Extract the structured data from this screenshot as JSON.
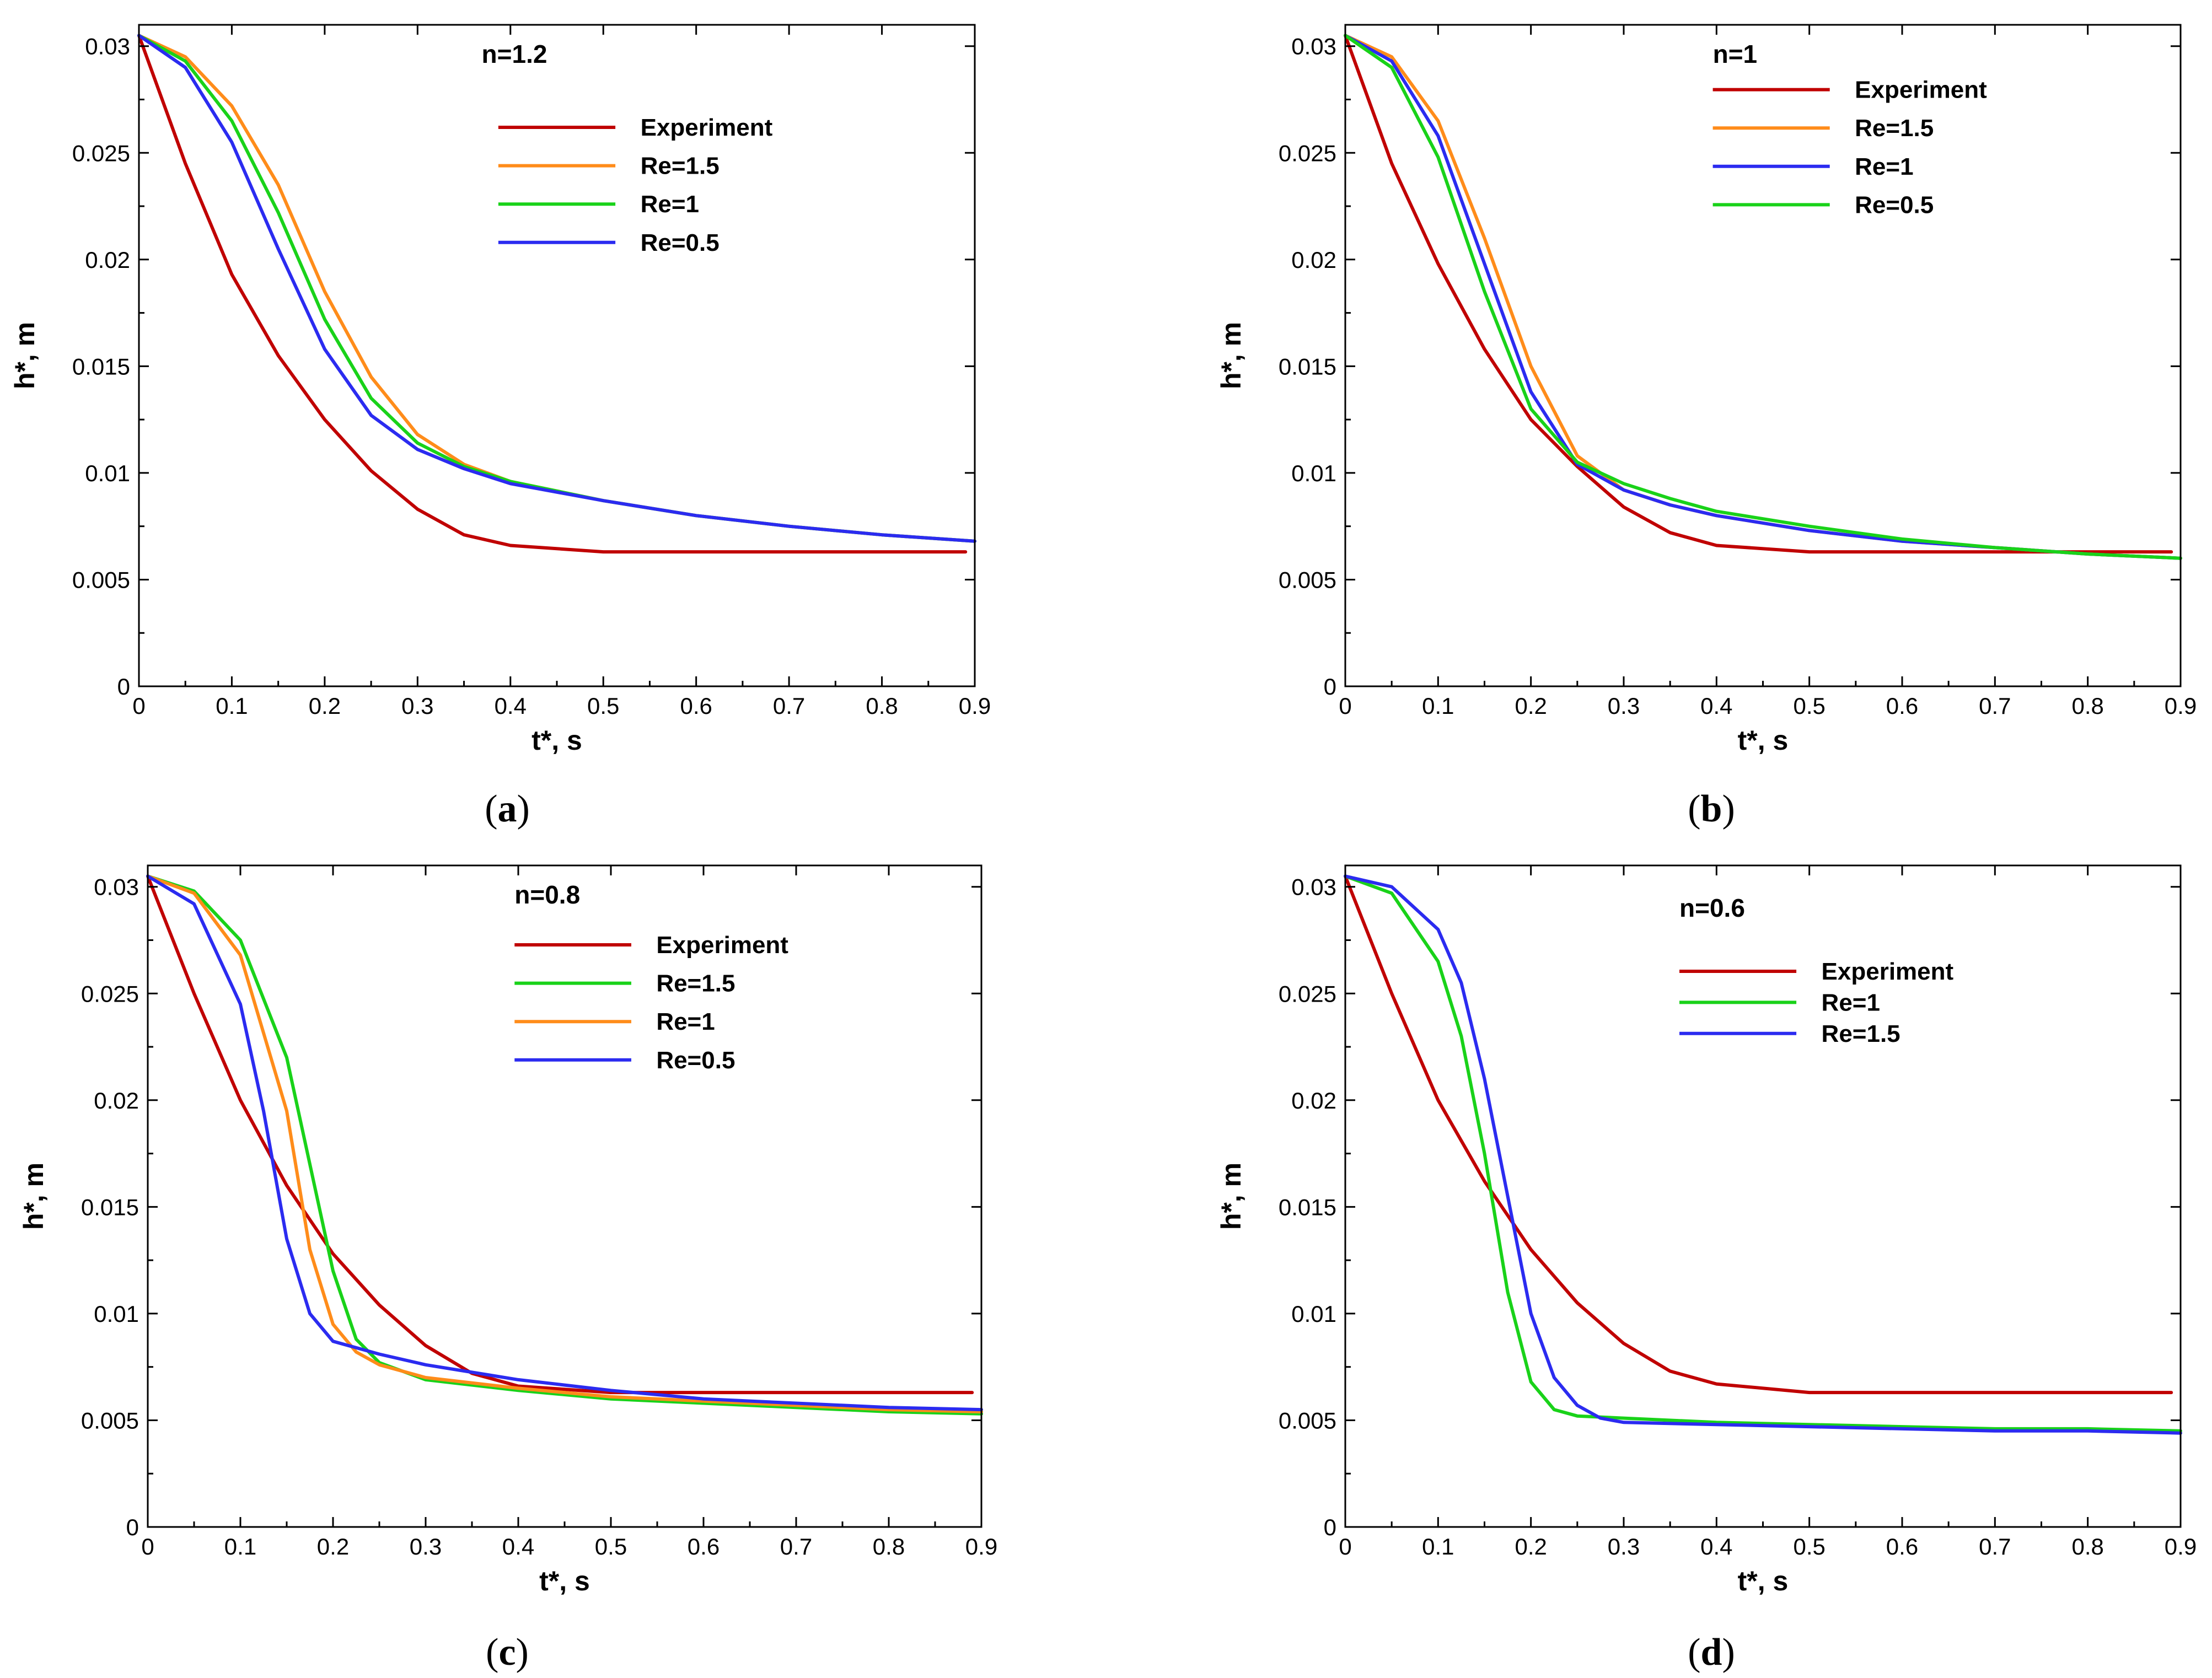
{
  "colors": {
    "experiment": "#c00000",
    "orange": "#ff8c1a",
    "green": "#19d219",
    "blue": "#2b2bf0"
  },
  "chart_data": [
    {
      "type": "line",
      "panel_label": "a",
      "annotation": "n=1.2",
      "xlabel": "t*, s",
      "ylabel": "h*, m",
      "xlim": [
        0,
        0.9
      ],
      "ylim": [
        0,
        0.031
      ],
      "x_ticks": [
        "0",
        "0.1",
        "0.2",
        "0.3",
        "0.4",
        "0.5",
        "0.6",
        "0.7",
        "0.8",
        "0.9"
      ],
      "y_ticks": [
        "0",
        "0.005",
        "0.01",
        "0.015",
        "0.02",
        "0.025",
        "0.03"
      ],
      "series": [
        {
          "name": "Experiment",
          "color": "#c00000",
          "x": [
            0,
            0.05,
            0.1,
            0.15,
            0.2,
            0.25,
            0.3,
            0.35,
            0.4,
            0.5,
            0.6,
            0.7,
            0.8,
            0.89
          ],
          "y": [
            0.0305,
            0.0245,
            0.0193,
            0.0155,
            0.0125,
            0.0101,
            0.0083,
            0.0071,
            0.0066,
            0.0063,
            0.0063,
            0.0063,
            0.0063,
            0.0063
          ]
        },
        {
          "name": "Re=1.5",
          "color": "#ff8c1a",
          "x": [
            0,
            0.05,
            0.1,
            0.15,
            0.2,
            0.25,
            0.3,
            0.35,
            0.4,
            0.5,
            0.6,
            0.7,
            0.8,
            0.9
          ],
          "y": [
            0.0305,
            0.0295,
            0.0272,
            0.0235,
            0.0185,
            0.0145,
            0.0118,
            0.0104,
            0.0096,
            0.0087,
            0.008,
            0.0075,
            0.0071,
            0.0068
          ]
        },
        {
          "name": "Re=1",
          "color": "#19d219",
          "x": [
            0,
            0.05,
            0.1,
            0.15,
            0.2,
            0.25,
            0.3,
            0.35,
            0.4,
            0.5,
            0.6,
            0.7,
            0.8,
            0.9
          ],
          "y": [
            0.0305,
            0.0293,
            0.0265,
            0.0222,
            0.0172,
            0.0135,
            0.0114,
            0.0103,
            0.0096,
            0.0087,
            0.008,
            0.0075,
            0.0071,
            0.0068
          ]
        },
        {
          "name": "Re=0.5",
          "color": "#2b2bf0",
          "x": [
            0,
            0.05,
            0.1,
            0.15,
            0.2,
            0.25,
            0.3,
            0.35,
            0.4,
            0.5,
            0.6,
            0.7,
            0.8,
            0.9
          ],
          "y": [
            0.0305,
            0.029,
            0.0255,
            0.0205,
            0.0158,
            0.0127,
            0.0111,
            0.0102,
            0.0095,
            0.0087,
            0.008,
            0.0075,
            0.0071,
            0.0068
          ]
        }
      ]
    },
    {
      "type": "line",
      "panel_label": "b",
      "annotation": "n=1",
      "xlabel": "t*, s",
      "ylabel": "h*, m",
      "xlim": [
        0,
        0.9
      ],
      "ylim": [
        0,
        0.031
      ],
      "x_ticks": [
        "0",
        "0.1",
        "0.2",
        "0.3",
        "0.4",
        "0.5",
        "0.6",
        "0.7",
        "0.8",
        "0.9"
      ],
      "y_ticks": [
        "0",
        "0.005",
        "0.01",
        "0.015",
        "0.02",
        "0.025",
        "0.03"
      ],
      "series": [
        {
          "name": "Experiment",
          "color": "#c00000",
          "x": [
            0,
            0.05,
            0.1,
            0.15,
            0.2,
            0.25,
            0.3,
            0.35,
            0.4,
            0.5,
            0.6,
            0.7,
            0.8,
            0.89
          ],
          "y": [
            0.0305,
            0.0245,
            0.0198,
            0.0158,
            0.0125,
            0.0103,
            0.0084,
            0.0072,
            0.0066,
            0.0063,
            0.0063,
            0.0063,
            0.0063,
            0.0063
          ]
        },
        {
          "name": "Re=1.5",
          "color": "#ff8c1a",
          "x": [
            0,
            0.05,
            0.1,
            0.15,
            0.2,
            0.25,
            0.3,
            0.35,
            0.4,
            0.5,
            0.6,
            0.7,
            0.8,
            0.9
          ],
          "y": [
            0.0305,
            0.0295,
            0.0265,
            0.021,
            0.015,
            0.0108,
            0.0092,
            0.0085,
            0.008,
            0.0073,
            0.0068,
            0.0065,
            0.0062,
            0.006
          ]
        },
        {
          "name": "Re=1",
          "color": "#2b2bf0",
          "x": [
            0,
            0.05,
            0.1,
            0.15,
            0.2,
            0.25,
            0.3,
            0.35,
            0.4,
            0.5,
            0.6,
            0.7,
            0.8,
            0.9
          ],
          "y": [
            0.0305,
            0.0293,
            0.0258,
            0.0198,
            0.0138,
            0.0104,
            0.0092,
            0.0085,
            0.008,
            0.0073,
            0.0068,
            0.0065,
            0.0062,
            0.006
          ]
        },
        {
          "name": "Re=0.5",
          "color": "#19d219",
          "x": [
            0,
            0.05,
            0.1,
            0.15,
            0.2,
            0.25,
            0.3,
            0.35,
            0.4,
            0.5,
            0.6,
            0.7,
            0.8,
            0.9
          ],
          "y": [
            0.0305,
            0.029,
            0.0248,
            0.0185,
            0.013,
            0.0105,
            0.0095,
            0.0088,
            0.0082,
            0.0075,
            0.0069,
            0.0065,
            0.0062,
            0.006
          ]
        }
      ]
    },
    {
      "type": "line",
      "panel_label": "c",
      "annotation": "n=0.8",
      "xlabel": "t*, s",
      "ylabel": "h*, m",
      "xlim": [
        0,
        0.9
      ],
      "ylim": [
        0,
        0.031
      ],
      "x_ticks": [
        "0",
        "0.1",
        "0.2",
        "0.3",
        "0.4",
        "0.5",
        "0.6",
        "0.7",
        "0.8",
        "0.9"
      ],
      "y_ticks": [
        "0",
        "0.005",
        "0.01",
        "0.015",
        "0.02",
        "0.025",
        "0.03"
      ],
      "series": [
        {
          "name": "Experiment",
          "color": "#c00000",
          "x": [
            0,
            0.05,
            0.1,
            0.15,
            0.2,
            0.25,
            0.3,
            0.35,
            0.4,
            0.5,
            0.6,
            0.7,
            0.8,
            0.89
          ],
          "y": [
            0.0305,
            0.025,
            0.02,
            0.016,
            0.0128,
            0.0104,
            0.0085,
            0.0072,
            0.0066,
            0.0063,
            0.0063,
            0.0063,
            0.0063,
            0.0063
          ]
        },
        {
          "name": "Re=1.5",
          "color": "#19d219",
          "x": [
            0,
            0.05,
            0.1,
            0.15,
            0.175,
            0.2,
            0.225,
            0.25,
            0.3,
            0.4,
            0.5,
            0.6,
            0.7,
            0.8,
            0.9
          ],
          "y": [
            0.0305,
            0.0298,
            0.0275,
            0.022,
            0.017,
            0.012,
            0.0088,
            0.0077,
            0.0069,
            0.0064,
            0.006,
            0.0058,
            0.0056,
            0.0054,
            0.0053
          ]
        },
        {
          "name": "Re=1",
          "color": "#ff8c1a",
          "x": [
            0,
            0.05,
            0.1,
            0.15,
            0.175,
            0.2,
            0.225,
            0.25,
            0.3,
            0.4,
            0.5,
            0.6,
            0.7,
            0.8,
            0.9
          ],
          "y": [
            0.0305,
            0.0297,
            0.0268,
            0.0195,
            0.013,
            0.0095,
            0.0082,
            0.0076,
            0.007,
            0.0065,
            0.0061,
            0.0059,
            0.0057,
            0.0055,
            0.0054
          ]
        },
        {
          "name": "Re=0.5",
          "color": "#2b2bf0",
          "x": [
            0,
            0.05,
            0.1,
            0.125,
            0.15,
            0.175,
            0.2,
            0.25,
            0.3,
            0.4,
            0.5,
            0.6,
            0.7,
            0.8,
            0.9
          ],
          "y": [
            0.0305,
            0.0292,
            0.0245,
            0.0195,
            0.0135,
            0.01,
            0.0087,
            0.0081,
            0.0076,
            0.0069,
            0.0064,
            0.006,
            0.0058,
            0.0056,
            0.0055
          ]
        }
      ]
    },
    {
      "type": "line",
      "panel_label": "d",
      "annotation": "n=0.6",
      "xlabel": "t*, s",
      "ylabel": "h*, m",
      "xlim": [
        0,
        0.9
      ],
      "ylim": [
        0,
        0.031
      ],
      "x_ticks": [
        "0",
        "0.1",
        "0.2",
        "0.3",
        "0.4",
        "0.5",
        "0.6",
        "0.7",
        "0.8",
        "0.9"
      ],
      "y_ticks": [
        "0",
        "0.005",
        "0.01",
        "0.015",
        "0.02",
        "0.025",
        "0.03"
      ],
      "series": [
        {
          "name": "Experiment",
          "color": "#c00000",
          "x": [
            0,
            0.05,
            0.1,
            0.15,
            0.2,
            0.25,
            0.3,
            0.35,
            0.4,
            0.5,
            0.6,
            0.7,
            0.8,
            0.89
          ],
          "y": [
            0.0305,
            0.025,
            0.02,
            0.0162,
            0.013,
            0.0105,
            0.0086,
            0.0073,
            0.0067,
            0.0063,
            0.0063,
            0.0063,
            0.0063,
            0.0063
          ]
        },
        {
          "name": "Re=1",
          "color": "#19d219",
          "x": [
            0,
            0.05,
            0.1,
            0.125,
            0.15,
            0.175,
            0.2,
            0.225,
            0.25,
            0.3,
            0.4,
            0.5,
            0.6,
            0.7,
            0.8,
            0.9
          ],
          "y": [
            0.0305,
            0.0297,
            0.0265,
            0.023,
            0.0175,
            0.011,
            0.0068,
            0.0055,
            0.0052,
            0.0051,
            0.0049,
            0.0048,
            0.0047,
            0.0046,
            0.0046,
            0.0045
          ]
        },
        {
          "name": "Re=1.5",
          "color": "#2b2bf0",
          "x": [
            0,
            0.05,
            0.1,
            0.125,
            0.15,
            0.175,
            0.2,
            0.225,
            0.25,
            0.275,
            0.3,
            0.4,
            0.5,
            0.6,
            0.7,
            0.8,
            0.9
          ],
          "y": [
            0.0305,
            0.03,
            0.028,
            0.0255,
            0.021,
            0.0155,
            0.01,
            0.007,
            0.0057,
            0.0051,
            0.0049,
            0.0048,
            0.0047,
            0.0046,
            0.0045,
            0.0045,
            0.0044
          ]
        }
      ]
    }
  ]
}
